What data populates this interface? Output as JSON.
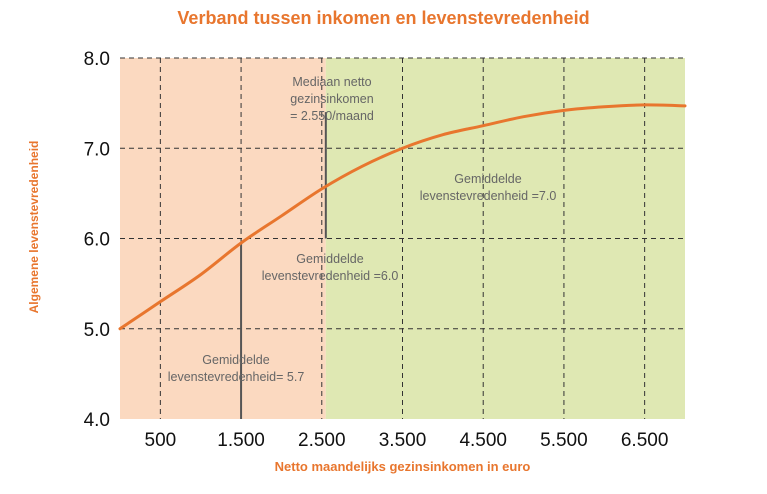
{
  "chart_data": {
    "type": "line",
    "title": "Verband tussen inkomen en levenstevredenheid",
    "xlabel": "Netto maandelijks gezinsinkomen in euro",
    "ylabel": "Algemene levenstevredenheid",
    "xlim": [
      0,
      7000
    ],
    "ylim": [
      4.0,
      8.0
    ],
    "x_ticks": [
      500,
      1500,
      2500,
      3500,
      4500,
      5500,
      6500
    ],
    "x_tick_labels": [
      "500",
      "1.500",
      "2.500",
      "3.500",
      "4.500",
      "5.500",
      "6.500"
    ],
    "y_ticks": [
      4.0,
      5.0,
      6.0,
      7.0,
      8.0
    ],
    "y_tick_labels": [
      "4.0",
      "5.0",
      "6.0",
      "7.0",
      "8.0"
    ],
    "grid": true,
    "series": [
      {
        "color": "#e8762e",
        "x": [
          0,
          500,
          1000,
          1500,
          2000,
          2500,
          3000,
          3500,
          4000,
          4500,
          5000,
          5500,
          6000,
          6500,
          7000
        ],
        "y": [
          5.0,
          5.3,
          5.6,
          5.95,
          6.25,
          6.55,
          6.8,
          7.0,
          7.15,
          7.25,
          7.35,
          7.42,
          7.46,
          7.48,
          7.47
        ]
      }
    ],
    "regions": [
      {
        "from": 0,
        "to": 2550,
        "color": "#fbd9c0"
      },
      {
        "from": 2550,
        "to": 7000,
        "color": "#dfe8b3"
      }
    ],
    "markers": [
      {
        "x": 1500,
        "y_from": 4.0,
        "y_to": 5.95
      },
      {
        "x": 2550,
        "y_from": 6.0,
        "y_to": 7.4
      }
    ],
    "annotations": [
      {
        "id": "median",
        "text": "Mediaan netto gezinsinkomen = 2.550/maand"
      },
      {
        "id": "avg-70",
        "text": "Gemiddelde levenstevredenheid =7.0"
      },
      {
        "id": "avg-60",
        "text": "Gemiddelde levenstevredenheid =6.0"
      },
      {
        "id": "avg-57",
        "text": "Gemiddelde levenstevredenheid= 5.7"
      }
    ]
  },
  "annotations_lines": {
    "median": [
      "Mediaan netto",
      "gezinsinkomen",
      "= 2.550/maand"
    ],
    "avg70": [
      "Gemiddelde",
      "levenstevredenheid =7.0"
    ],
    "avg60": [
      "Gemiddelde",
      "levenstevredenheid =6.0"
    ],
    "avg57": [
      "Gemiddelde",
      "levenstevredenheid= 5.7"
    ]
  }
}
